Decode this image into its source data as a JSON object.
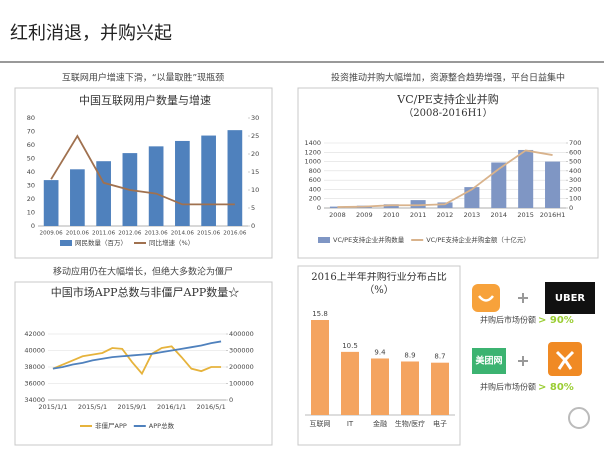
{
  "title": "红利消退，并购兴起",
  "captions": [
    "互联网用户增速下滑，“以量取胜”现瓶颈",
    "投资推动并购大幅增加，资源整合趋势增强，平台日益集中",
    "移动应用仍在大幅增长，但绝大多数沦为僵尸"
  ],
  "chart_data": [
    {
      "type": "combo",
      "title": "中国互联网用户数量与增速",
      "categories": [
        "2009.06",
        "2010.06",
        "2011.06",
        "2012.06",
        "2013.06",
        "2014.06",
        "2015.06",
        "2016.06"
      ],
      "series": [
        {
          "name": "网民数量（百万）",
          "type": "bar",
          "color": "#4f81bd",
          "values": [
            34,
            42,
            48,
            54,
            59,
            63,
            67,
            71
          ]
        },
        {
          "name": "同比增速（%）",
          "type": "line",
          "axis": "y2",
          "color": "#a0714f",
          "values": [
            13,
            25,
            12,
            10,
            9,
            6,
            6,
            6
          ]
        }
      ],
      "ylim": [
        0,
        80
      ],
      "yticks": [
        0,
        10,
        20,
        30,
        40,
        50,
        60,
        70,
        80
      ],
      "y2lim": [
        0,
        30
      ],
      "y2ticks": [
        0,
        5,
        10,
        15,
        20,
        25,
        30
      ],
      "grid": false
    },
    {
      "type": "combo",
      "title": "VC/PE支持企业并购",
      "subtitle": "（2008-2016H1）",
      "categories": [
        "2008",
        "2009",
        "2010",
        "2011",
        "2012",
        "2013",
        "2014",
        "2015",
        "2016H1"
      ],
      "series": [
        {
          "name": "VC/PE支持企业并购数量",
          "type": "bar",
          "color": "#7f96c4",
          "values": [
            30,
            50,
            80,
            170,
            120,
            450,
            980,
            1250,
            1000
          ]
        },
        {
          "name": "VC/PE支持企业并购金额（十亿元）",
          "type": "line",
          "axis": "y2",
          "color": "#d9b38c",
          "values": [
            10,
            15,
            30,
            30,
            40,
            200,
            420,
            620,
            570
          ]
        }
      ],
      "ylim": [
        0,
        1400
      ],
      "yticks": [
        0,
        200,
        400,
        600,
        800,
        1000,
        1200,
        1400
      ],
      "y2lim": [
        0,
        700
      ],
      "y2ticks": [
        0,
        100,
        200,
        300,
        400,
        500,
        600,
        700
      ],
      "grid": true
    },
    {
      "type": "combo",
      "title": "中国市场APP总数与非僵尸APP数量☆",
      "categories": [
        "2015/1/1",
        null,
        null,
        null,
        "2015/5/1",
        null,
        null,
        null,
        "2015/9/1",
        null,
        null,
        null,
        "2016/1/1",
        null,
        null,
        null,
        "2016/5/1",
        null
      ],
      "series": [
        {
          "name": "非僵尸APP",
          "type": "line",
          "color": "#e6b33c",
          "values": [
            37800,
            38300,
            38800,
            39300,
            39500,
            39700,
            40300,
            40200,
            38600,
            37200,
            39600,
            40300,
            40500,
            39200,
            37800,
            37500,
            38000,
            38000
          ]
        },
        {
          "name": "APP总数",
          "type": "line",
          "axis": "y2",
          "color": "#4f81bd",
          "values": [
            190000,
            200000,
            215000,
            225000,
            240000,
            250000,
            260000,
            265000,
            270000,
            275000,
            280000,
            290000,
            300000,
            310000,
            320000,
            330000,
            345000,
            355000
          ]
        }
      ],
      "ylim": [
        34000,
        42000
      ],
      "yticks": [
        34000,
        36000,
        38000,
        40000,
        42000
      ],
      "y2lim": [
        0,
        400000
      ],
      "y2ticks": [
        0,
        100000,
        200000,
        300000,
        400000
      ],
      "grid": true
    },
    {
      "type": "bar",
      "title": "2016上半年并购行业分布占比（%）",
      "categories": [
        "互联网",
        "IT",
        "金融",
        "生物/医疗",
        "电子"
      ],
      "values": [
        15.8,
        10.5,
        9.4,
        8.9,
        8.7
      ],
      "color": "#f4a460"
    }
  ],
  "merger_cards": [
    {
      "brand": "UBER",
      "share_label": "并购后市场份额",
      "share": "> 90%"
    },
    {
      "brand": "美团网",
      "share_label": "并购后市场份额",
      "share": "> 80%"
    }
  ]
}
